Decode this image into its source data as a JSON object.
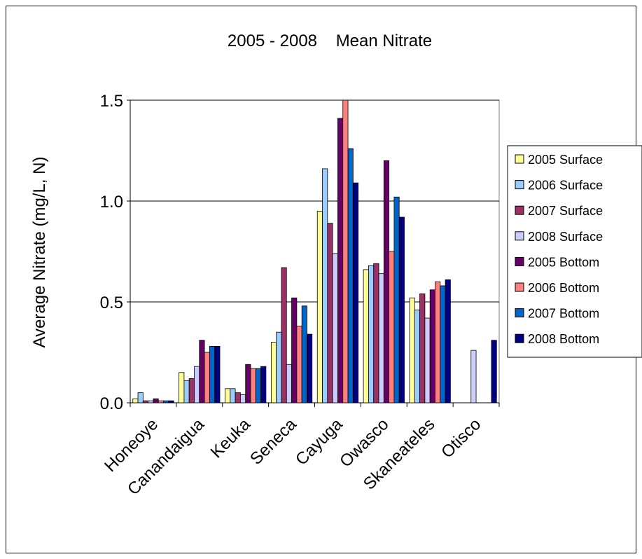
{
  "chart_data": {
    "type": "bar",
    "title": "2005 - 2008    Mean Nitrate",
    "xlabel": "",
    "ylabel": "Average Nitrate (mg/L, N)",
    "ylim": [
      0,
      1.5
    ],
    "yticks": [
      "0.0",
      "0.5",
      "1.0",
      "1.5"
    ],
    "grid": true,
    "legend_position": "right",
    "categories": [
      "Honeoye",
      "Canandaigua",
      "Keuka",
      "Seneca",
      "Cayuga",
      "Owasco",
      "Skaneateles",
      "Otisco"
    ],
    "series": [
      {
        "name": "2005 Surface",
        "color": "#FFFF99",
        "values": [
          0.02,
          0.15,
          0.07,
          0.3,
          0.95,
          0.66,
          0.52,
          null
        ]
      },
      {
        "name": "2006 Surface",
        "color": "#99CCFF",
        "values": [
          0.05,
          0.11,
          0.07,
          0.35,
          1.16,
          0.68,
          0.46,
          null
        ]
      },
      {
        "name": "2007 Surface",
        "color": "#993366",
        "values": [
          0.01,
          0.12,
          0.05,
          0.67,
          0.89,
          0.69,
          0.54,
          null
        ]
      },
      {
        "name": "2008 Surface",
        "color": "#CCCCFF",
        "values": [
          0.01,
          0.18,
          0.04,
          0.19,
          0.74,
          0.64,
          0.42,
          0.26
        ]
      },
      {
        "name": "2005 Bottom",
        "color": "#660066",
        "values": [
          0.02,
          0.31,
          0.19,
          0.52,
          1.41,
          1.2,
          0.56,
          null
        ]
      },
      {
        "name": "2006 Bottom",
        "color": "#FF8080",
        "values": [
          0.01,
          0.25,
          0.17,
          0.38,
          1.52,
          0.75,
          0.6,
          null
        ]
      },
      {
        "name": "2007 Bottom",
        "color": "#0066CC",
        "values": [
          0.01,
          0.28,
          0.17,
          0.48,
          1.26,
          1.02,
          0.58,
          null
        ]
      },
      {
        "name": "2008 Bottom",
        "color": "#000080",
        "values": [
          0.01,
          0.28,
          0.18,
          0.34,
          1.09,
          0.92,
          0.61,
          0.31
        ]
      }
    ]
  }
}
